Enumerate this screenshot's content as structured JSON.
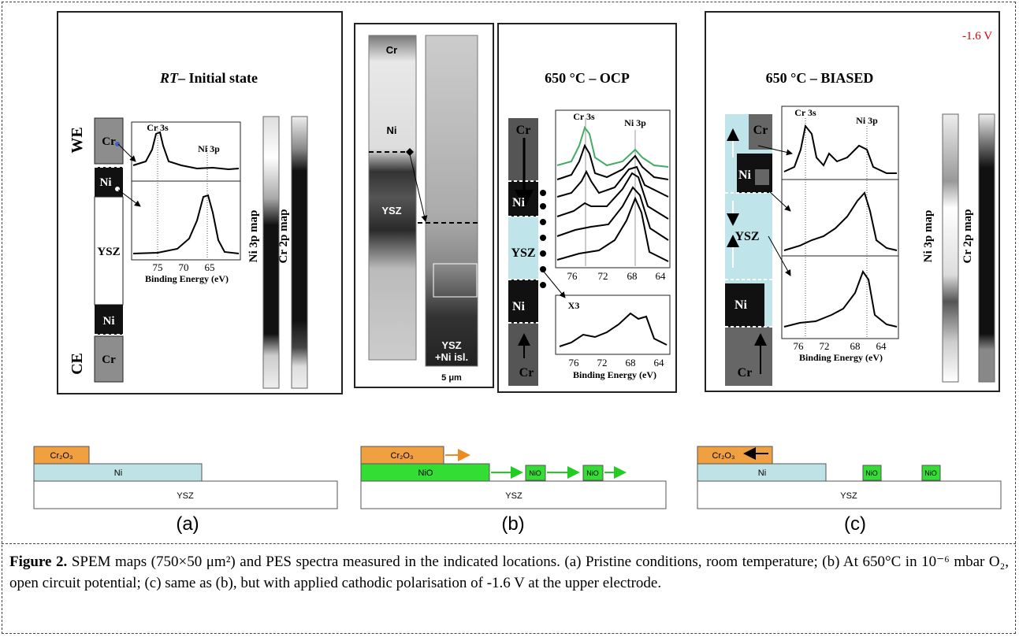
{
  "panel_a": {
    "title_italic": "RT",
    "title": "– Initial state",
    "we": "WE",
    "ce": "CE",
    "layers": [
      "Cr",
      "Ni",
      "YSZ",
      "Ni",
      "Cr"
    ],
    "spectrum": {
      "peak_1": "Cr 3s",
      "peak_2": "Ni 3p",
      "ticks": [
        75,
        70,
        65
      ],
      "xlabel": "Binding Energy (eV)"
    },
    "maps": [
      "Ni 3p map",
      "Cr 2p map"
    ]
  },
  "panel_b": {
    "image_labels": [
      "Cr",
      "Ni",
      "YSZ",
      "YSZ",
      "+Ni isl."
    ],
    "scale": "5 μm",
    "title": "650 °C – OCP",
    "layers": [
      "Cr",
      "Ni",
      "YSZ",
      "Ni",
      "Cr"
    ],
    "spectrum": {
      "peak_1": "Cr 3s",
      "peak_2": "Ni 3p",
      "ticks": [
        76,
        72,
        68,
        64
      ],
      "inset": "X3",
      "inset_ticks": [
        76,
        72,
        68,
        64
      ],
      "xlabel": "Binding Energy (eV)"
    }
  },
  "panel_c": {
    "voltage": "-1.6 V",
    "title": "650 °C – BIASED",
    "layers": [
      "Cr",
      "Ni",
      "YSZ",
      "Ni",
      "Cr"
    ],
    "spectrum": {
      "peak_1": "Cr 3s",
      "peak_2": "Ni 3p",
      "ticks": [
        76,
        72,
        68,
        64
      ],
      "xlabel": "Binding Energy (eV)"
    },
    "maps": [
      "Ni 3p map",
      "Cr 2p map"
    ]
  },
  "schematics": [
    {
      "label": "(a)",
      "oxide": "Cr₂O₃",
      "metal": "Ni",
      "substrate": "YSZ"
    },
    {
      "label": "(b)",
      "oxide": "Cr₂O₃",
      "metal": "NiO",
      "islands": [
        "NiO",
        "NiO"
      ],
      "substrate": "YSZ"
    },
    {
      "label": "(c)",
      "oxide": "Cr₂O₃",
      "metal": "Ni",
      "islands": [
        "NiO",
        "NiO"
      ],
      "substrate": "YSZ"
    }
  ],
  "caption": {
    "label": "Figure 2.",
    "text": "SPEM maps (750×50 μm²) and PES spectra measured in the indicated locations. (a) Pristine conditions, room temperature; (b) At 650°C in 10⁻⁶ mbar O₂, open circuit potential; (c) same as (b), but with applied cathodic polarisation of -1.6 V at the upper electrode."
  }
}
